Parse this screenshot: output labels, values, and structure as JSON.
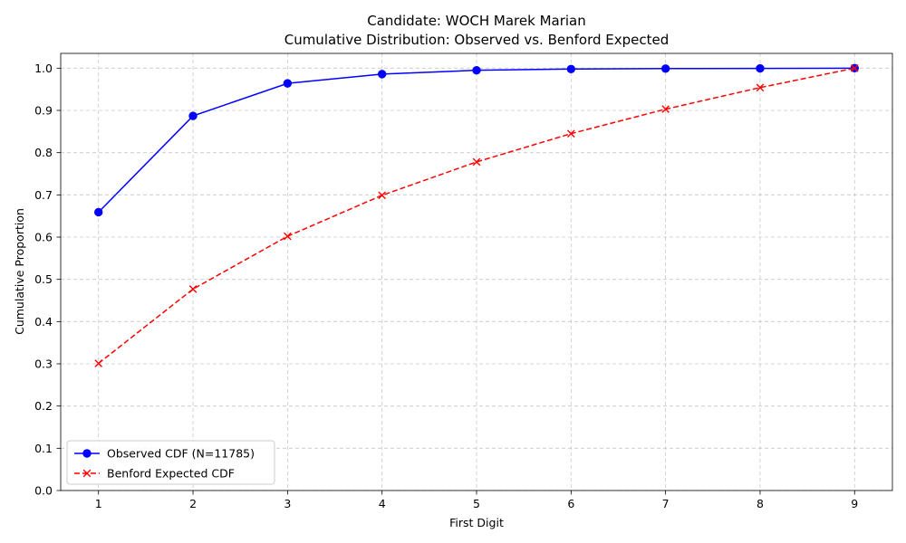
{
  "chart_data": {
    "type": "line",
    "title": "Candidate: WOCH Marek Marian",
    "subtitle": "Cumulative Distribution: Observed vs. Benford Expected",
    "xlabel": "First Digit",
    "ylabel": "Cumulative Proportion",
    "x": [
      1,
      2,
      3,
      4,
      5,
      6,
      7,
      8,
      9
    ],
    "xlim": [
      0.6,
      9.4
    ],
    "ylim": [
      0.0,
      1.035
    ],
    "xticks": [
      "1",
      "2",
      "3",
      "4",
      "5",
      "6",
      "7",
      "8",
      "9"
    ],
    "yticks": [
      "0.0",
      "0.1",
      "0.2",
      "0.3",
      "0.4",
      "0.5",
      "0.6",
      "0.7",
      "0.8",
      "0.9",
      "1.0"
    ],
    "grid": true,
    "legend_position": "lower-left",
    "series": [
      {
        "name": "Observed CDF (N=11785)",
        "color": "#0000ff",
        "line_style": "solid",
        "marker": "circle",
        "values": [
          0.659,
          0.887,
          0.964,
          0.986,
          0.995,
          0.998,
          0.999,
          0.9995,
          1.0
        ]
      },
      {
        "name": "Benford Expected CDF",
        "color": "#ff0000",
        "line_style": "dashed",
        "marker": "x",
        "values": [
          0.301,
          0.477,
          0.602,
          0.699,
          0.778,
          0.845,
          0.903,
          0.954,
          1.0
        ]
      }
    ]
  }
}
